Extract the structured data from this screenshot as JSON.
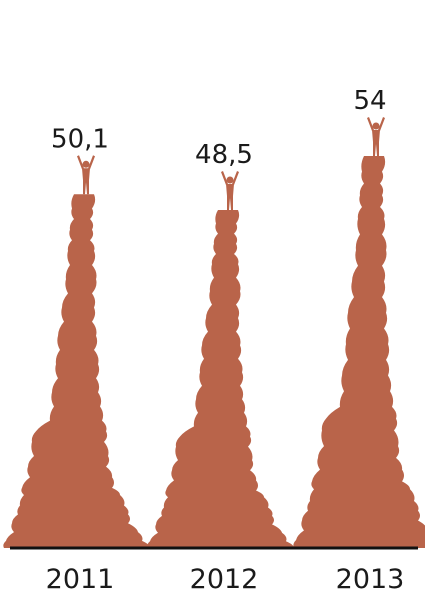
{
  "chart_data": {
    "type": "bar",
    "categories": [
      "2011",
      "2012",
      "2013"
    ],
    "values": [
      50.1,
      48.5,
      54
    ],
    "value_labels": [
      "50,1",
      "48,5",
      "54"
    ],
    "title": "",
    "xlabel": "",
    "ylabel": "",
    "ylim": [
      0,
      60
    ],
    "colors": {
      "peak": "#b9644a",
      "baseline": "#111111",
      "text": "#1a1a1a"
    },
    "mark_icon": "climber-on-peak-icon",
    "grid": false
  }
}
